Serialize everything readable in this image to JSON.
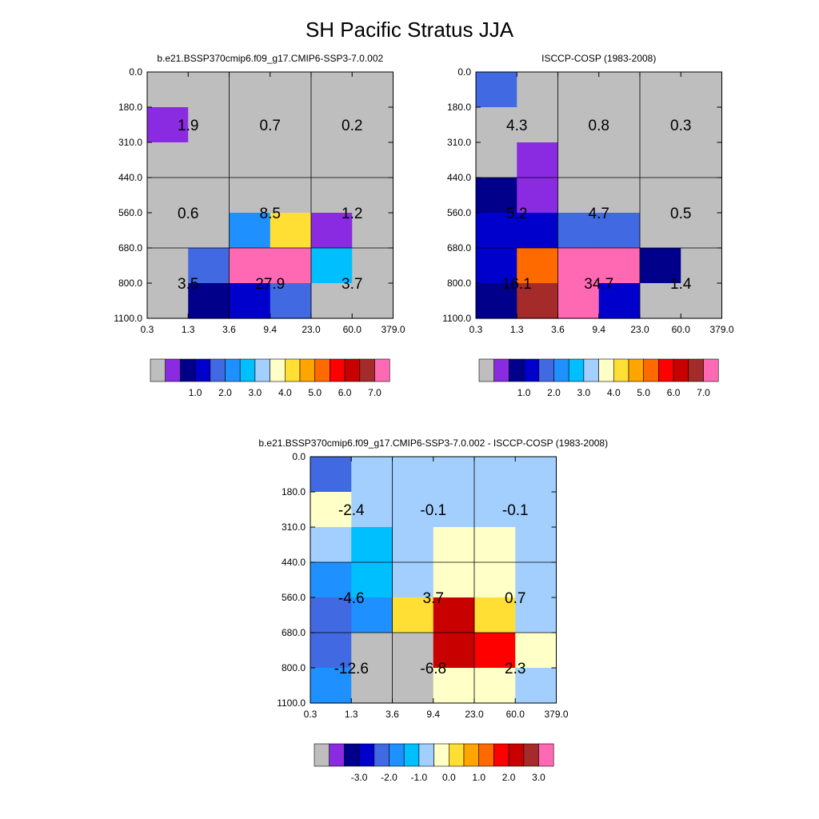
{
  "title": "SH Pacific Stratus JJA",
  "chart_data": [
    {
      "type": "heatmap",
      "title": "b.e21.BSSP370cmip6.f09_g17.CMIP6-SSP3-7.0.002",
      "x_ticks": [
        "0.3",
        "1.3",
        "3.6",
        "9.4",
        "23.0",
        "60.0",
        "379.0"
      ],
      "y_ticks": [
        "0.0",
        "180.0",
        "310.0",
        "440.0",
        "560.0",
        "680.0",
        "800.0",
        "1100.0"
      ],
      "cells": [
        [
          "#BEBEBE",
          "#BEBEBE",
          "#BEBEBE",
          "#BEBEBE",
          "#BEBEBE",
          "#BEBEBE"
        ],
        [
          "#8A2BE2",
          "#BEBEBE",
          "#BEBEBE",
          "#BEBEBE",
          "#BEBEBE",
          "#BEBEBE"
        ],
        [
          "#BEBEBE",
          "#BEBEBE",
          "#BEBEBE",
          "#BEBEBE",
          "#BEBEBE",
          "#BEBEBE"
        ],
        [
          "#BEBEBE",
          "#BEBEBE",
          "#BEBEBE",
          "#BEBEBE",
          "#BEBEBE",
          "#BEBEBE"
        ],
        [
          "#BEBEBE",
          "#BEBEBE",
          "#1E90FF",
          "#FFDF33",
          "#8A2BE2",
          "#BEBEBE"
        ],
        [
          "#BEBEBE",
          "#4169E1",
          "#FF69B4",
          "#FF69B4",
          "#00BFFF",
          "#BEBEBE"
        ],
        [
          "#BEBEBE",
          "#00008B",
          "#0000CD",
          "#4169E1",
          "#BEBEBE",
          "#BEBEBE"
        ]
      ],
      "labels": [
        "1.9",
        "0.7",
        "0.2",
        "0.6",
        "8.5",
        "1.2",
        "3.5",
        "27.9",
        "3.7"
      ],
      "colorbar_labels": [
        "1.0",
        "2.0",
        "3.0",
        "4.0",
        "5.0",
        "6.0",
        "7.0"
      ]
    },
    {
      "type": "heatmap",
      "title": "ISCCP-COSP (1983-2008)",
      "x_ticks": [
        "0.3",
        "1.3",
        "3.6",
        "9.4",
        "23.0",
        "60.0",
        "379.0"
      ],
      "y_ticks": [
        "0.0",
        "180.0",
        "310.0",
        "440.0",
        "560.0",
        "680.0",
        "800.0",
        "1100.0"
      ],
      "cells": [
        [
          "#4169E1",
          "#BEBEBE",
          "#BEBEBE",
          "#BEBEBE",
          "#BEBEBE",
          "#BEBEBE"
        ],
        [
          "#BEBEBE",
          "#BEBEBE",
          "#BEBEBE",
          "#BEBEBE",
          "#BEBEBE",
          "#BEBEBE"
        ],
        [
          "#BEBEBE",
          "#8A2BE2",
          "#BEBEBE",
          "#BEBEBE",
          "#BEBEBE",
          "#BEBEBE"
        ],
        [
          "#00008B",
          "#8A2BE2",
          "#BEBEBE",
          "#BEBEBE",
          "#BEBEBE",
          "#BEBEBE"
        ],
        [
          "#0000CD",
          "#0000CD",
          "#4169E1",
          "#4169E1",
          "#BEBEBE",
          "#BEBEBE"
        ],
        [
          "#0000CD",
          "#FF6A00",
          "#FF69B4",
          "#FF69B4",
          "#00008B",
          "#BEBEBE"
        ],
        [
          "#00008B",
          "#A52A2A",
          "#FF69B4",
          "#0000CD",
          "#BEBEBE",
          "#BEBEBE"
        ]
      ],
      "labels": [
        "4.3",
        "0.8",
        "0.3",
        "5.2",
        "4.7",
        "0.5",
        "16.1",
        "34.7",
        "1.4"
      ],
      "colorbar_labels": [
        "1.0",
        "2.0",
        "3.0",
        "4.0",
        "5.0",
        "6.0",
        "7.0"
      ]
    },
    {
      "type": "heatmap",
      "title": "b.e21.BSSP370cmip6.f09_g17.CMIP6-SSP3-7.0.002 - ISCCP-COSP (1983-2008)",
      "x_ticks": [
        "0.3",
        "1.3",
        "3.6",
        "9.4",
        "23.0",
        "60.0",
        "379.0"
      ],
      "y_ticks": [
        "0.0",
        "180.0",
        "310.0",
        "440.0",
        "560.0",
        "680.0",
        "800.0",
        "1100.0"
      ],
      "cells": [
        [
          "#4169E1",
          "#A3CFFF",
          "#A3CFFF",
          "#A3CFFF",
          "#A3CFFF",
          "#A3CFFF"
        ],
        [
          "#FFFFC8",
          "#A3CFFF",
          "#A3CFFF",
          "#A3CFFF",
          "#A3CFFF",
          "#A3CFFF"
        ],
        [
          "#A3CFFF",
          "#00BFFF",
          "#A3CFFF",
          "#FFFFC8",
          "#FFFFC8",
          "#A3CFFF"
        ],
        [
          "#1E90FF",
          "#00BFFF",
          "#A3CFFF",
          "#FFFFC8",
          "#FFFFC8",
          "#A3CFFF"
        ],
        [
          "#4169E1",
          "#1E90FF",
          "#FFDF33",
          "#C80000",
          "#FFDF33",
          "#A3CFFF"
        ],
        [
          "#4169E1",
          "#BEBEBE",
          "#BEBEBE",
          "#C80000",
          "#FF0000",
          "#FFFFC8"
        ],
        [
          "#1E90FF",
          "#BEBEBE",
          "#BEBEBE",
          "#FFFFC8",
          "#FFFFC8",
          "#A3CFFF"
        ]
      ],
      "labels": [
        "-2.4",
        "-0.1",
        "-0.1",
        "-4.6",
        "3.7",
        "0.7",
        "-12.6",
        "-6.8",
        "2.3"
      ],
      "colorbar_labels": [
        "-3.0",
        "-2.0",
        "-1.0",
        "0.0",
        "1.0",
        "2.0",
        "3.0"
      ]
    }
  ],
  "colorbar_colors": [
    "#BEBEBE",
    "#8A2BE2",
    "#00008B",
    "#0000CD",
    "#4169E1",
    "#1E90FF",
    "#00BFFF",
    "#A3CFFF",
    "#FFFFC8",
    "#FFDF33",
    "#FFA500",
    "#FF6A00",
    "#FF0000",
    "#C80000",
    "#A52A2A",
    "#FF69B4"
  ]
}
